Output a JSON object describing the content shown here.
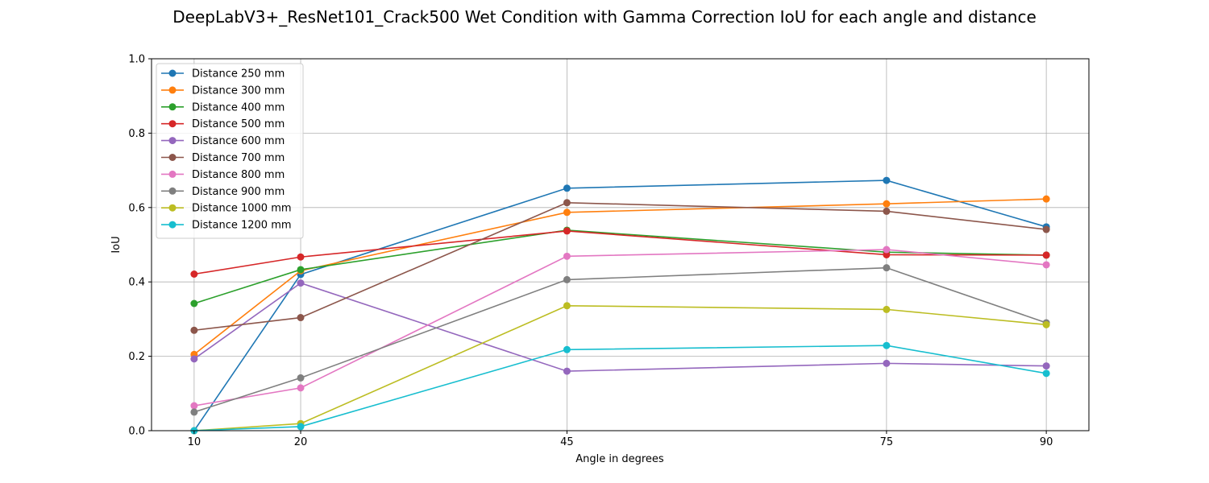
{
  "chart_data": {
    "type": "line",
    "title": "DeepLabV3+_ResNet101_Crack500 Wet Condition with Gamma Correction IoU for each angle and distance",
    "xlabel": "Angle in degrees",
    "ylabel": "IoU",
    "x": [
      10,
      20,
      45,
      75,
      90
    ],
    "x_tick_labels": [
      "10",
      "20",
      "45",
      "75",
      "90"
    ],
    "xlim": [
      6,
      94
    ],
    "ylim": [
      0.0,
      1.0
    ],
    "y_ticks": [
      0.0,
      0.2,
      0.4,
      0.6,
      0.8,
      1.0
    ],
    "y_tick_labels": [
      "0.0",
      "0.2",
      "0.4",
      "0.6",
      "0.8",
      "1.0"
    ],
    "grid": true,
    "legend_position": "upper-left",
    "series": [
      {
        "name": "Distance 250 mm",
        "color": "#1f77b4",
        "values": [
          0.0,
          0.42,
          0.652,
          0.673,
          0.548
        ]
      },
      {
        "name": "Distance 300 mm",
        "color": "#ff7f0e",
        "values": [
          0.205,
          0.43,
          0.587,
          0.61,
          0.623
        ]
      },
      {
        "name": "Distance 400 mm",
        "color": "#2ca02c",
        "values": [
          0.342,
          0.433,
          0.539,
          0.48,
          0.472
        ]
      },
      {
        "name": "Distance 500 mm",
        "color": "#d62728",
        "values": [
          0.421,
          0.467,
          0.537,
          0.473,
          0.472
        ]
      },
      {
        "name": "Distance 600 mm",
        "color": "#9467bd",
        "values": [
          0.193,
          0.397,
          0.16,
          0.181,
          0.174
        ]
      },
      {
        "name": "Distance 700 mm",
        "color": "#8c564b",
        "values": [
          0.27,
          0.304,
          0.613,
          0.59,
          0.541
        ]
      },
      {
        "name": "Distance 800 mm",
        "color": "#e377c2",
        "values": [
          0.067,
          0.115,
          0.469,
          0.487,
          0.446
        ]
      },
      {
        "name": "Distance 900 mm",
        "color": "#7f7f7f",
        "values": [
          0.05,
          0.142,
          0.406,
          0.438,
          0.29
        ]
      },
      {
        "name": "Distance 1000 mm",
        "color": "#bcbd22",
        "values": [
          0.0,
          0.019,
          0.336,
          0.326,
          0.285
        ]
      },
      {
        "name": "Distance 1200 mm",
        "color": "#17becf",
        "values": [
          0.0,
          0.011,
          0.218,
          0.229,
          0.154
        ]
      }
    ]
  }
}
